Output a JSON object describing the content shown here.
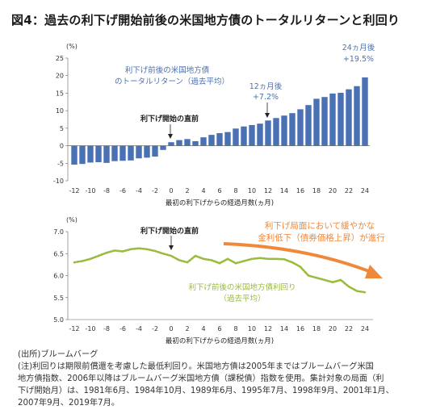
{
  "title": "図4：過去の利下げ開始前後の米国地方債のトータルリターンと利回り",
  "chart_data": [
    {
      "type": "bar",
      "unit_label": "(%)",
      "xlabel": "最初の利下げからの経過月数(ヵ月)",
      "ylim": [
        -10,
        25
      ],
      "yticks": [
        -10,
        -5,
        0,
        5,
        10,
        15,
        20,
        25
      ],
      "xticks": [
        -12,
        -10,
        -8,
        -6,
        -4,
        -2,
        0,
        2,
        4,
        6,
        8,
        10,
        12,
        14,
        16,
        18,
        20,
        22,
        24
      ],
      "x": [
        -12,
        -11,
        -10,
        -9,
        -8,
        -7,
        -6,
        -5,
        -4,
        -3,
        -2,
        -1,
        0,
        1,
        2,
        3,
        4,
        5,
        6,
        7,
        8,
        9,
        10,
        11,
        12,
        13,
        14,
        15,
        16,
        17,
        18,
        19,
        20,
        21,
        22,
        23,
        24
      ],
      "values": [
        -5.4,
        -5.2,
        -4.8,
        -4.7,
        -4.9,
        -4.4,
        -4.3,
        -4.2,
        -3.6,
        -3.4,
        -3.1,
        -1.2,
        1.0,
        1.6,
        1.9,
        1.3,
        2.4,
        3.1,
        3.6,
        3.9,
        4.9,
        5.5,
        5.9,
        6.3,
        7.2,
        7.9,
        8.6,
        9.3,
        10.4,
        11.6,
        13.4,
        13.9,
        14.9,
        15.1,
        16.1,
        17.0,
        19.5
      ],
      "bar_color": "#4a71b3",
      "annotations": {
        "series_label_line1": "利下げ前後の米国地方債",
        "series_label_line2": "のトータルリターン（過去平均）",
        "m12_label_line1": "12ヵ月後",
        "m12_label_line2": "+7.2%",
        "m24_label_line1": "24ヵ月後",
        "m24_label_line2": "+19.5%",
        "start_label": "利下げ開始の直前"
      }
    },
    {
      "type": "line",
      "unit_label": "(%)",
      "xlabel": "最初の利下げからの経過月数(ヵ月)",
      "ylim": [
        5.0,
        7.0
      ],
      "yticks": [
        "5.0",
        "5.5",
        "6.0",
        "6.5",
        "7.0"
      ],
      "xticks": [
        -12,
        -10,
        -8,
        -6,
        -4,
        -2,
        0,
        2,
        4,
        6,
        8,
        10,
        12,
        14,
        16,
        18,
        20,
        22,
        24
      ],
      "x": [
        -12,
        -11,
        -10,
        -9,
        -8,
        -7,
        -6,
        -5,
        -4,
        -3,
        -2,
        -1,
        0,
        1,
        2,
        3,
        4,
        5,
        6,
        7,
        8,
        9,
        10,
        11,
        12,
        13,
        14,
        15,
        16,
        17,
        18,
        19,
        20,
        21,
        22,
        23,
        24
      ],
      "values": [
        6.3,
        6.33,
        6.38,
        6.45,
        6.52,
        6.57,
        6.55,
        6.6,
        6.62,
        6.6,
        6.56,
        6.5,
        6.45,
        6.35,
        6.3,
        6.45,
        6.38,
        6.35,
        6.28,
        6.38,
        6.28,
        6.33,
        6.38,
        6.4,
        6.38,
        6.38,
        6.37,
        6.3,
        6.2,
        6.0,
        5.95,
        5.9,
        5.85,
        5.9,
        5.75,
        5.65,
        5.62
      ],
      "line_color": "#9bbb3f",
      "annotations": {
        "start_label": "利下げ開始の直前",
        "trend_line1": "利下げ局面において緩やかな",
        "trend_line2": "金利低下（債券価格上昇）が進行",
        "trend_color": "#f0883a",
        "series_label_line1": "利下げ前後の米国地方債利回り",
        "series_label_line2": "（過去平均）"
      }
    }
  ],
  "notes": {
    "source": "(出所)ブルームバーグ",
    "note1": "(注)利回りは期限前償還を考慮した最低利回り。米国地方債は2005年まではブルームバーグ米国",
    "note2": "地方債指数、2006年以降はブルームバーグ米国地方債（課税債）指数を使用。集計対象の局面（利",
    "note3": "下げ開始月）は、1981年6月、1984年10月、1989年6月、1995年7月、1998年9月、2001年1月、",
    "note4": "2007年9月、2019年7月。"
  }
}
